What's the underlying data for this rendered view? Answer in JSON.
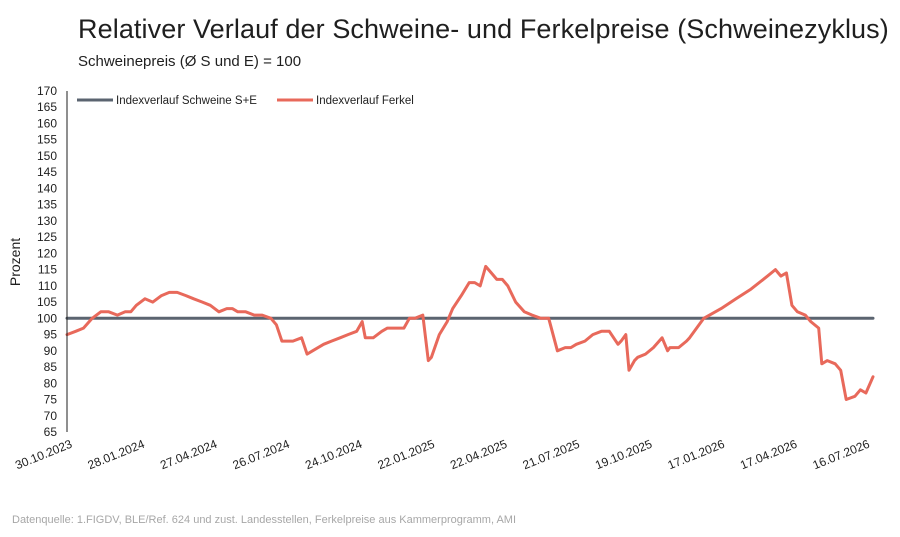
{
  "title": "Relativer Verlauf der Schweine- und Ferkelpreise (Schweinezyklus)",
  "subtitle": "Schweinepreis (Ø S und E) = 100",
  "source": "Datenquelle: 1.FIGDV, BLE/Ref. 624 und zust. Landesstellen, Ferkelpreise aus Kammerprogramm, AMI",
  "chart_data": {
    "type": "line",
    "title": "Relativer Verlauf der Schweine- und Ferkelpreise (Schweinezyklus)",
    "subtitle": "Schweinepreis (Ø S und E) = 100",
    "ylabel": "Prozent",
    "xlabel": "",
    "ylim": [
      65,
      170
    ],
    "yticks": [
      65,
      70,
      75,
      80,
      85,
      90,
      95,
      100,
      105,
      110,
      115,
      120,
      125,
      130,
      135,
      140,
      145,
      150,
      155,
      160,
      165,
      170
    ],
    "xlim": [
      "30.10.2023",
      "19.08.2026"
    ],
    "xtick_labels": [
      "30.10.2023",
      "28.01.2024",
      "27.04.2024",
      "26.07.2024",
      "24.10.2024",
      "22.01.2025",
      "22.04.2025",
      "21.07.2025",
      "19.10.2025",
      "17.01.2026",
      "17.04.2026",
      "16.07.2026"
    ],
    "grid": false,
    "legend_position": "top-left",
    "colors": {
      "schweine": "#5b6470",
      "ferkel": "#e8695b"
    },
    "series": [
      {
        "name": "Indexverlauf Schweine S+E",
        "x": [
          "30.10.2023",
          "19.08.2026"
        ],
        "y": [
          100,
          100
        ]
      },
      {
        "name": "Indexverlauf Ferkel",
        "x": [
          "30.10.2023",
          "10.11.2023",
          "20.11.2023",
          "01.12.2023",
          "12.12.2023",
          "22.12.2023",
          "02.01.2024",
          "12.01.2024",
          "19.01.2024",
          "26.01.2024",
          "06.02.2024",
          "16.02.2024",
          "27.02.2024",
          "08.03.2024",
          "18.03.2024",
          "29.03.2024",
          "08.04.2024",
          "19.04.2024",
          "29.04.2024",
          "10.05.2024",
          "20.05.2024",
          "27.05.2024",
          "03.06.2024",
          "13.06.2024",
          "24.06.2024",
          "04.07.2024",
          "15.07.2024",
          "22.07.2024",
          "29.07.2024",
          "02.08.2024",
          "12.08.2024",
          "23.08.2024",
          "30.08.2024",
          "06.09.2024",
          "13.09.2024",
          "20.09.2024",
          "30.09.2024",
          "11.10.2024",
          "21.10.2024",
          "01.11.2024",
          "08.11.2024",
          "12.11.2024",
          "22.11.2024",
          "03.12.2024",
          "10.12.2024",
          "20.12.2024",
          "31.12.2024",
          "07.01.2025",
          "14.01.2025",
          "24.01.2025",
          "31.01.2025",
          "04.02.2025",
          "14.02.2025",
          "24.02.2025",
          "03.03.2025",
          "14.03.2025",
          "24.03.2025",
          "31.03.2025",
          "07.04.2025",
          "14.04.2025",
          "21.04.2025",
          "28.04.2025",
          "05.05.2025",
          "12.05.2025",
          "22.05.2025",
          "02.06.2025",
          "12.06.2025",
          "23.06.2025",
          "03.07.2025",
          "14.07.2025",
          "24.07.2025",
          "31.07.2025",
          "07.08.2025",
          "18.08.2025",
          "28.08.2025",
          "08.09.2025",
          "18.09.2025",
          "29.09.2025",
          "03.10.2025",
          "09.10.2025",
          "13.10.2025",
          "20.10.2025",
          "24.10.2025",
          "03.11.2025",
          "13.11.2025",
          "24.11.2025",
          "01.12.2025",
          "04.12.2025",
          "15.12.2025",
          "25.12.2025",
          "29.12.2025",
          "16.01.2026",
          "07.02.2026",
          "26.02.2026",
          "17.03.2026",
          "07.04.2026",
          "17.04.2026",
          "24.04.2026",
          "01.05.2026",
          "08.05.2026",
          "15.05.2026",
          "25.05.2026",
          "01.06.2026",
          "11.06.2026",
          "15.06.2026",
          "22.06.2026",
          "02.07.2026",
          "09.07.2026",
          "16.07.2026",
          "27.07.2026",
          "03.08.2026",
          "10.08.2026",
          "19.08.2026"
        ],
        "y": [
          95,
          96,
          97,
          100,
          102,
          102,
          101,
          102,
          102,
          104,
          106,
          105,
          107,
          108,
          108,
          107,
          106,
          105,
          104,
          102,
          103,
          103,
          102,
          102,
          101,
          101,
          100,
          98,
          93,
          93,
          93,
          94,
          89,
          90,
          91,
          92,
          93,
          94,
          95,
          96,
          99,
          94,
          94,
          96,
          97,
          97,
          97,
          100,
          100,
          101,
          87,
          88,
          95,
          99,
          103,
          107,
          111,
          111,
          110,
          116,
          114,
          112,
          112,
          110,
          105,
          102,
          101,
          100,
          100,
          90,
          91,
          91,
          92,
          93,
          95,
          96,
          96,
          92,
          93,
          95,
          84,
          87,
          88,
          89,
          91,
          94,
          90,
          91,
          91,
          93,
          94,
          100,
          103,
          106,
          109,
          113,
          115,
          113,
          114,
          104,
          102,
          101,
          99,
          97,
          86,
          87,
          86,
          84,
          75,
          76,
          78,
          77,
          82
        ]
      }
    ]
  }
}
